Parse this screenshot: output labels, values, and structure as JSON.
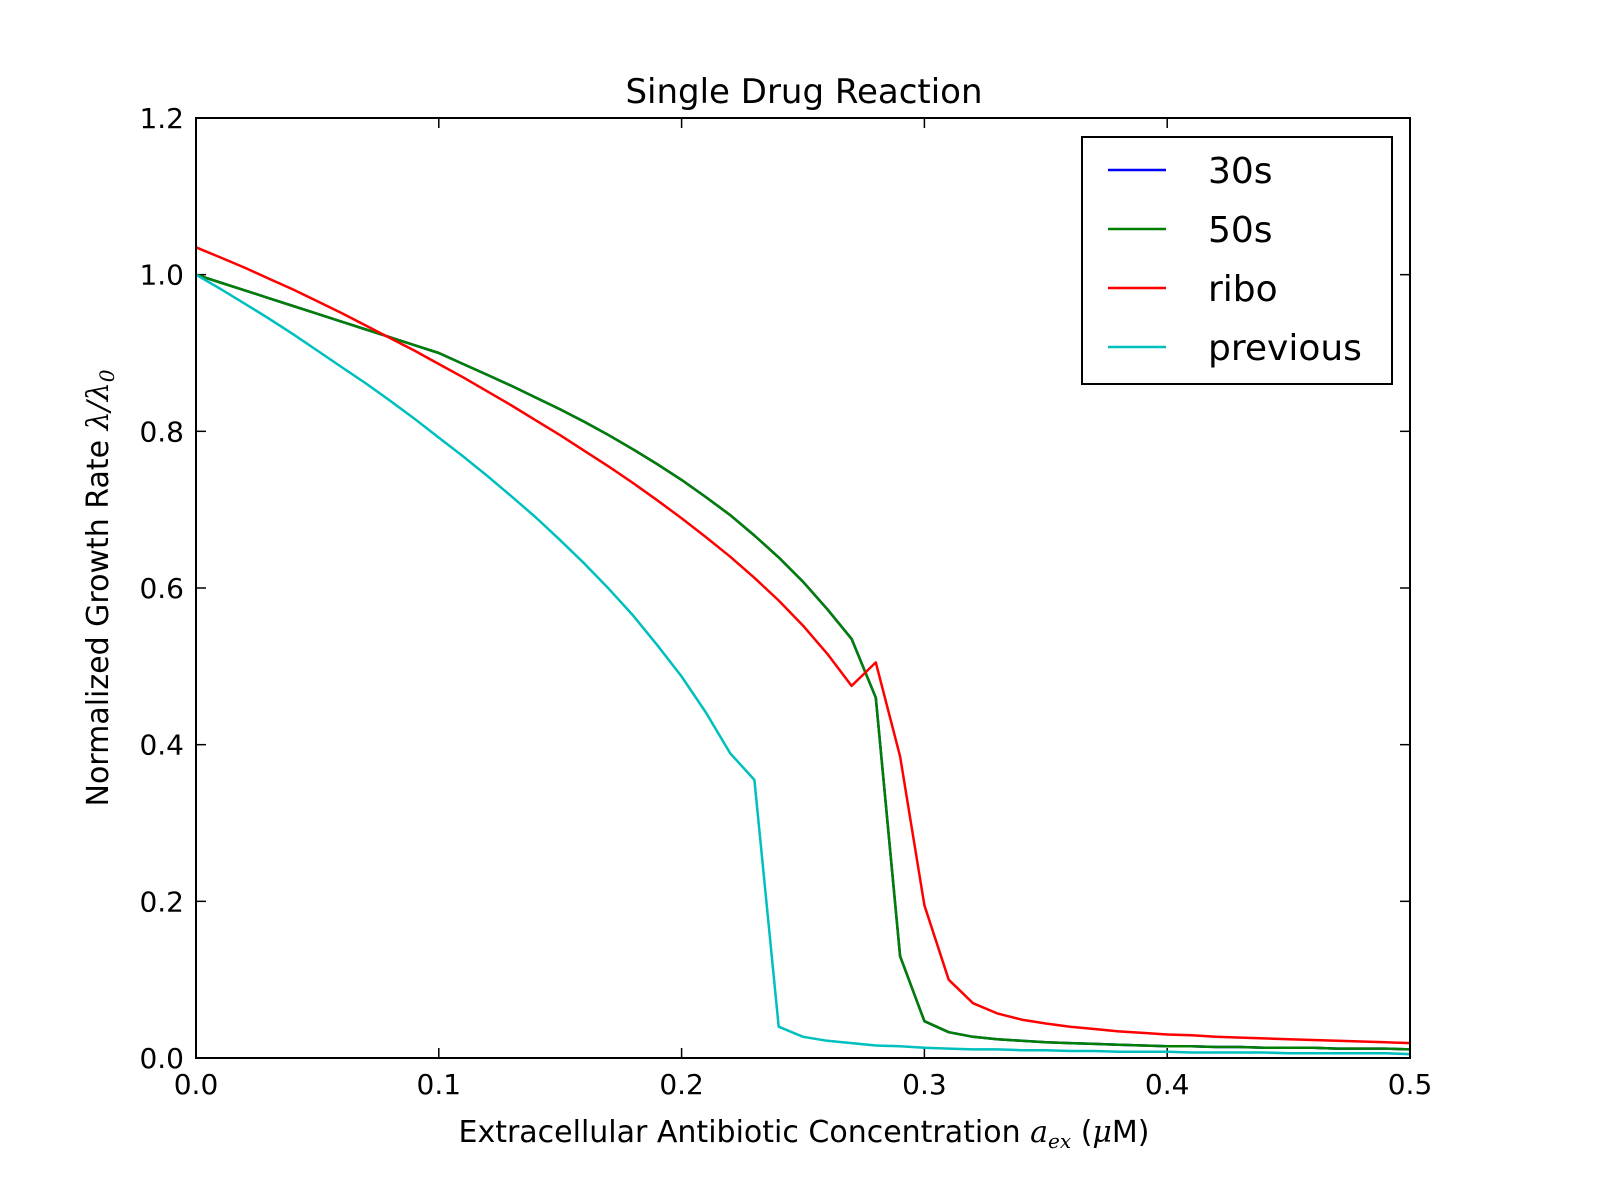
{
  "chart_data": {
    "type": "line",
    "title": "Single Drug Reaction",
    "xlabel": {
      "prefix": "Extracellular Antibiotic Concentration ",
      "var": "a",
      "sub": "ex",
      "unit_open": " (",
      "mu": "μ",
      "unit_rest": "M)"
    },
    "ylabel": {
      "prefix": "Normalized Growth Rate ",
      "var": "λ/λ",
      "sub": "0"
    },
    "xlim": [
      0.0,
      0.5
    ],
    "ylim": [
      0.0,
      1.2
    ],
    "xticks": [
      "0.0",
      "0.1",
      "0.2",
      "0.3",
      "0.4",
      "0.5"
    ],
    "yticks": [
      "0.0",
      "0.2",
      "0.4",
      "0.6",
      "0.8",
      "1.0",
      "1.2"
    ],
    "legend_position": "top-right",
    "grid": false,
    "series": [
      {
        "name": "30s",
        "color": "#0000ff",
        "x": [
          0.0,
          0.01,
          0.02,
          0.03,
          0.04,
          0.05,
          0.06,
          0.07,
          0.08,
          0.09,
          0.1,
          0.11,
          0.12,
          0.13,
          0.14,
          0.15,
          0.16,
          0.17,
          0.18,
          0.19,
          0.2,
          0.21,
          0.22,
          0.23,
          0.24,
          0.25,
          0.26,
          0.27,
          0.28,
          0.29,
          0.3,
          0.31,
          0.32,
          0.33,
          0.34,
          0.35,
          0.36,
          0.37,
          0.38,
          0.39,
          0.4,
          0.41,
          0.42,
          0.43,
          0.44,
          0.45,
          0.46,
          0.47,
          0.48,
          0.49,
          0.5
        ],
        "y": [
          1.0,
          0.99,
          0.98,
          0.97,
          0.96,
          0.95,
          0.94,
          0.93,
          0.92,
          0.91,
          0.9,
          0.886,
          0.872,
          0.858,
          0.843,
          0.828,
          0.812,
          0.795,
          0.777,
          0.758,
          0.738,
          0.716,
          0.693,
          0.667,
          0.639,
          0.608,
          0.573,
          0.535,
          0.46,
          0.13,
          0.047,
          0.033,
          0.027,
          0.024,
          0.022,
          0.02,
          0.019,
          0.018,
          0.017,
          0.016,
          0.015,
          0.015,
          0.014,
          0.014,
          0.013,
          0.013,
          0.013,
          0.012,
          0.012,
          0.012,
          0.011
        ]
      },
      {
        "name": "50s",
        "color": "#007f00",
        "x": [
          0.0,
          0.01,
          0.02,
          0.03,
          0.04,
          0.05,
          0.06,
          0.07,
          0.08,
          0.09,
          0.1,
          0.11,
          0.12,
          0.13,
          0.14,
          0.15,
          0.16,
          0.17,
          0.18,
          0.19,
          0.2,
          0.21,
          0.22,
          0.23,
          0.24,
          0.25,
          0.26,
          0.27,
          0.28,
          0.29,
          0.3,
          0.31,
          0.32,
          0.33,
          0.34,
          0.35,
          0.36,
          0.37,
          0.38,
          0.39,
          0.4,
          0.41,
          0.42,
          0.43,
          0.44,
          0.45,
          0.46,
          0.47,
          0.48,
          0.49,
          0.5
        ],
        "y": [
          1.0,
          0.99,
          0.98,
          0.97,
          0.96,
          0.95,
          0.94,
          0.93,
          0.92,
          0.91,
          0.9,
          0.886,
          0.872,
          0.858,
          0.843,
          0.828,
          0.812,
          0.795,
          0.777,
          0.758,
          0.738,
          0.716,
          0.693,
          0.667,
          0.639,
          0.608,
          0.573,
          0.535,
          0.46,
          0.13,
          0.047,
          0.033,
          0.027,
          0.024,
          0.022,
          0.02,
          0.019,
          0.018,
          0.017,
          0.016,
          0.015,
          0.015,
          0.014,
          0.014,
          0.013,
          0.013,
          0.013,
          0.012,
          0.012,
          0.012,
          0.011
        ]
      },
      {
        "name": "ribo",
        "color": "#ff0000",
        "x": [
          0.0,
          0.01,
          0.02,
          0.03,
          0.04,
          0.05,
          0.06,
          0.07,
          0.08,
          0.09,
          0.1,
          0.11,
          0.12,
          0.13,
          0.14,
          0.15,
          0.16,
          0.17,
          0.18,
          0.19,
          0.2,
          0.21,
          0.22,
          0.23,
          0.24,
          0.25,
          0.26,
          0.27,
          0.28,
          0.29,
          0.3,
          0.31,
          0.32,
          0.33,
          0.34,
          0.35,
          0.36,
          0.37,
          0.38,
          0.39,
          0.4,
          0.41,
          0.42,
          0.43,
          0.44,
          0.45,
          0.46,
          0.47,
          0.48,
          0.49,
          0.5
        ],
        "y": [
          1.035,
          1.022,
          1.009,
          0.995,
          0.981,
          0.966,
          0.951,
          0.935,
          0.919,
          0.903,
          0.886,
          0.869,
          0.851,
          0.833,
          0.814,
          0.795,
          0.775,
          0.755,
          0.734,
          0.712,
          0.689,
          0.665,
          0.64,
          0.613,
          0.584,
          0.552,
          0.516,
          0.475,
          0.505,
          0.385,
          0.195,
          0.1,
          0.07,
          0.057,
          0.049,
          0.044,
          0.04,
          0.037,
          0.034,
          0.032,
          0.03,
          0.029,
          0.027,
          0.026,
          0.025,
          0.024,
          0.023,
          0.022,
          0.021,
          0.02,
          0.019
        ]
      },
      {
        "name": "previous",
        "color": "#00bfbf",
        "x": [
          0.0,
          0.01,
          0.02,
          0.03,
          0.04,
          0.05,
          0.06,
          0.07,
          0.08,
          0.09,
          0.1,
          0.11,
          0.12,
          0.13,
          0.14,
          0.15,
          0.16,
          0.17,
          0.18,
          0.19,
          0.2,
          0.21,
          0.22,
          0.23,
          0.24,
          0.25,
          0.26,
          0.27,
          0.28,
          0.29,
          0.3,
          0.31,
          0.32,
          0.33,
          0.34,
          0.35,
          0.36,
          0.37,
          0.38,
          0.39,
          0.4,
          0.41,
          0.42,
          0.43,
          0.44,
          0.45,
          0.46,
          0.47,
          0.48,
          0.49,
          0.5
        ],
        "y": [
          1.0,
          0.982,
          0.963,
          0.944,
          0.924,
          0.903,
          0.882,
          0.861,
          0.839,
          0.816,
          0.792,
          0.768,
          0.743,
          0.717,
          0.69,
          0.661,
          0.631,
          0.599,
          0.565,
          0.527,
          0.487,
          0.441,
          0.389,
          0.355,
          0.04,
          0.027,
          0.022,
          0.019,
          0.016,
          0.015,
          0.013,
          0.012,
          0.011,
          0.011,
          0.01,
          0.01,
          0.009,
          0.009,
          0.008,
          0.008,
          0.008,
          0.007,
          0.007,
          0.007,
          0.007,
          0.006,
          0.006,
          0.006,
          0.006,
          0.006,
          0.005
        ]
      }
    ]
  }
}
